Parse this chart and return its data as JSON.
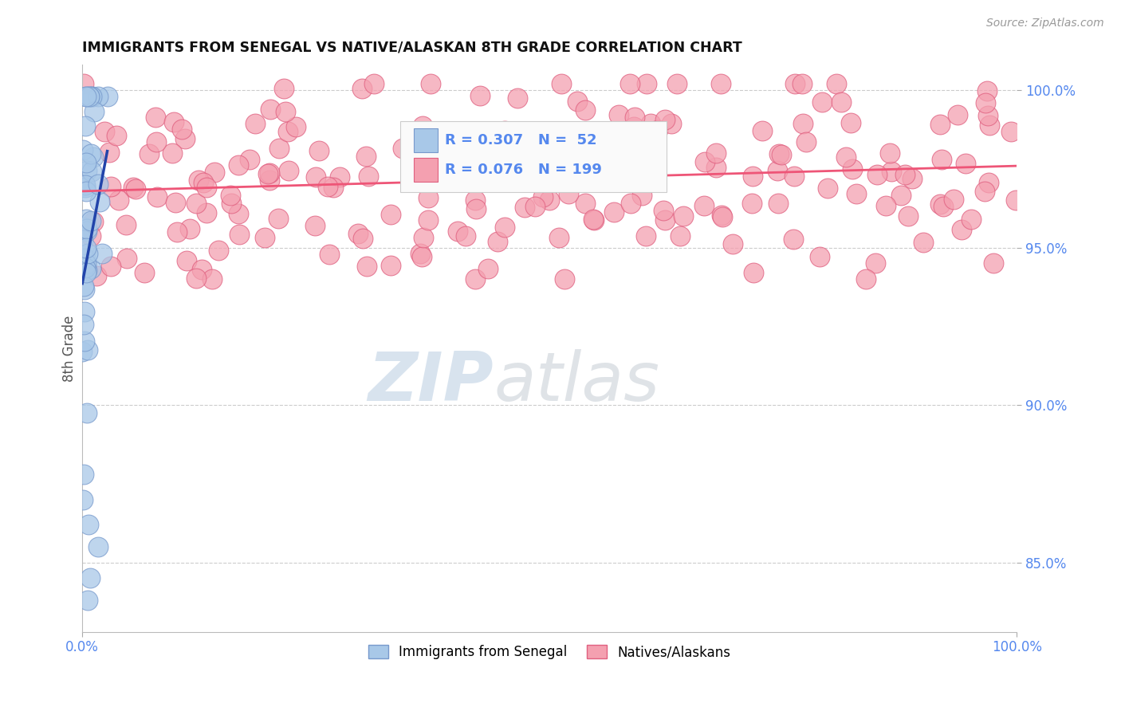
{
  "title": "IMMIGRANTS FROM SENEGAL VS NATIVE/ALASKAN 8TH GRADE CORRELATION CHART",
  "source_text": "Source: ZipAtlas.com",
  "ylabel": "8th Grade",
  "xlim": [
    0.0,
    1.0
  ],
  "ylim": [
    0.828,
    1.008
  ],
  "yticks": [
    0.85,
    0.9,
    0.95,
    1.0
  ],
  "ytick_labels": [
    "85.0%",
    "90.0%",
    "95.0%",
    "100.0%"
  ],
  "blue_R": 0.307,
  "blue_N": 52,
  "pink_R": 0.076,
  "pink_N": 199,
  "blue_color": "#A8C8E8",
  "pink_color": "#F4A0B0",
  "blue_edge": "#7799CC",
  "pink_edge": "#E06080",
  "blue_line_color": "#2244AA",
  "pink_line_color": "#EE5577",
  "watermark_zip": "ZIP",
  "watermark_atlas": "atlas",
  "legend_label_blue": "Immigrants from Senegal",
  "legend_label_pink": "Natives/Alaskans",
  "background_color": "#FFFFFF",
  "grid_color": "#CCCCCC",
  "tick_color": "#5588EE",
  "ylabel_color": "#555555",
  "title_color": "#111111"
}
